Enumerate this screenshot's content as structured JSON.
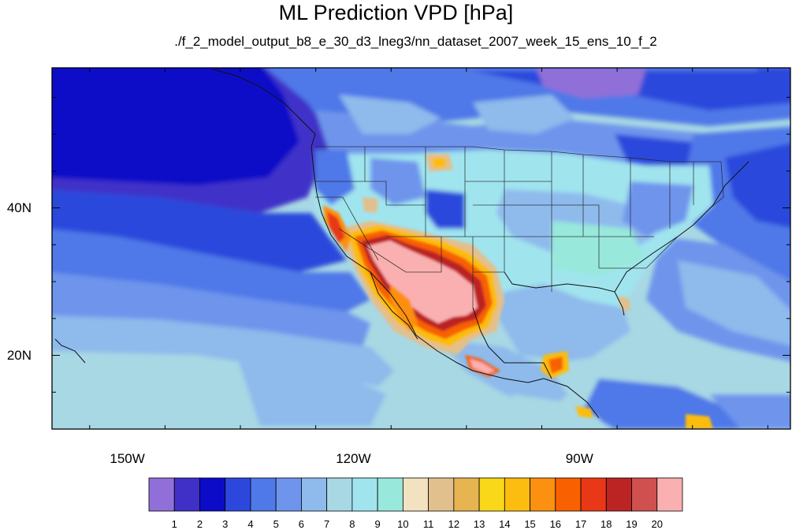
{
  "title": "ML Prediction VPD [hPa]",
  "subtitle": "./f_2_model_output_b8_e_30_d3_lneg3/nn_dataset_2007_week_15_ens_10_f_2",
  "map": {
    "lon_range": [
      -160,
      -62
    ],
    "lat_range": [
      10,
      59
    ],
    "lat_labels": [
      {
        "text": "40N",
        "lat": 40
      },
      {
        "text": "20N",
        "lat": 20
      }
    ],
    "lon_labels": [
      {
        "text": "150W",
        "lon": -150
      },
      {
        "text": "120W",
        "lon": -120
      },
      {
        "text": "90W",
        "lon": -90
      }
    ]
  },
  "colorbar": {
    "levels": [
      "1",
      "2",
      "3",
      "4",
      "5",
      "6",
      "7",
      "8",
      "9",
      "10",
      "11",
      "12",
      "13",
      "14",
      "15",
      "16",
      "17",
      "18",
      "19",
      "20"
    ],
    "colors": [
      "#9070d8",
      "#4030c8",
      "#0c0cc8",
      "#2c48dc",
      "#4f78e8",
      "#6e94ec",
      "#8ebaec",
      "#a8d8e4",
      "#a0e4ee",
      "#98e8dc",
      "#f2e2c0",
      "#e2c08e",
      "#e6b450",
      "#f8d818",
      "#fcbc10",
      "#fc9010",
      "#f86000",
      "#e83818",
      "#bc2424",
      "#d05050",
      "#fab0b0"
    ]
  }
}
